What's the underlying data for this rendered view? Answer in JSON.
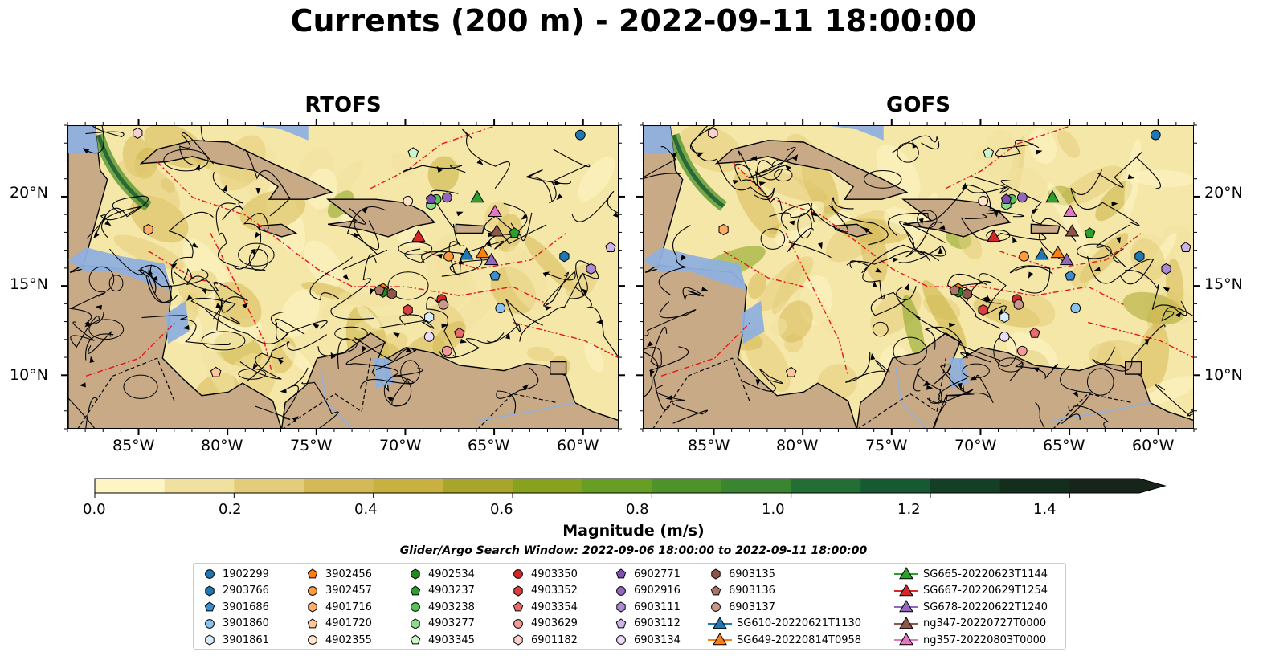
{
  "suptitle": "Currents (200 m) - 2022-09-11 18:00:00",
  "panels": [
    {
      "title": "RTOFS"
    },
    {
      "title": "GOFS"
    }
  ],
  "axes": {
    "x_ticks": [
      "85°W",
      "80°W",
      "75°W",
      "70°W",
      "65°W",
      "60°W"
    ],
    "y_ticks": [
      "20°N",
      "15°N",
      "10°N"
    ]
  },
  "colorbar": {
    "label": "Magnitude (m/s)",
    "tick_labels": [
      "0.0",
      "0.2",
      "0.4",
      "0.6",
      "0.8",
      "1.0",
      "1.2",
      "1.4"
    ],
    "colors": [
      "#fdf6c4",
      "#f1e19f",
      "#e4cd7a",
      "#d6b957",
      "#c9b141",
      "#a8a52b",
      "#87a21e",
      "#679e23",
      "#4e922a",
      "#3a8630",
      "#226e35",
      "#155a33",
      "#133f27",
      "#142e1d",
      "#17241a"
    ],
    "range": [
      0.0,
      1.5
    ],
    "extend": "max"
  },
  "search_window": "Glider/Argo Search Window: 2022-09-06 18:00:00 to 2022-09-11 18:00:00",
  "colors": {
    "land": "#c8aa86",
    "shallow_water": "#8fb0dd",
    "mask": "#9ab4df",
    "eez_line": "#e8141a",
    "streamline": "#000000"
  },
  "legend": {
    "columns": [
      [
        {
          "label": "1902299",
          "marker": "circle",
          "color": "#1f77b4"
        },
        {
          "label": "2903766",
          "marker": "hexagon",
          "color": "#1f77b4"
        },
        {
          "label": "3901686",
          "marker": "pentagon",
          "color": "#3a8fd0"
        },
        {
          "label": "3901860",
          "marker": "circle",
          "color": "#8bc3ee"
        },
        {
          "label": "3901861",
          "marker": "hexagon",
          "color": "#d6ecfb"
        }
      ],
      [
        {
          "label": "3902456",
          "marker": "pentagon",
          "color": "#ff7f0e"
        },
        {
          "label": "3902457",
          "marker": "circle",
          "color": "#ff9a3c"
        },
        {
          "label": "4901716",
          "marker": "hexagon",
          "color": "#ffae66"
        },
        {
          "label": "4901720",
          "marker": "pentagon",
          "color": "#ffc899"
        },
        {
          "label": "4902355",
          "marker": "circle",
          "color": "#ffe4c7"
        }
      ],
      [
        {
          "label": "4902534",
          "marker": "hexagon",
          "color": "#218a21"
        },
        {
          "label": "4903237",
          "marker": "pentagon",
          "color": "#2ca02c"
        },
        {
          "label": "4903238",
          "marker": "circle",
          "color": "#55c255"
        },
        {
          "label": "4903277",
          "marker": "hexagon",
          "color": "#8bdb8b"
        },
        {
          "label": "4903345",
          "marker": "pentagon",
          "color": "#cdf5cd"
        }
      ],
      [
        {
          "label": "4903350",
          "marker": "circle",
          "color": "#d62728"
        },
        {
          "label": "4903352",
          "marker": "hexagon",
          "color": "#dd3e3f"
        },
        {
          "label": "4903354",
          "marker": "pentagon",
          "color": "#ec6a6a"
        },
        {
          "label": "4903629",
          "marker": "circle",
          "color": "#f39b9b"
        },
        {
          "label": "6901182",
          "marker": "hexagon",
          "color": "#fad0d0"
        }
      ],
      [
        {
          "label": "6902771",
          "marker": "pentagon",
          "color": "#7d4fb3"
        },
        {
          "label": "6902916",
          "marker": "circle",
          "color": "#9467bd"
        },
        {
          "label": "6903111",
          "marker": "hexagon",
          "color": "#ae8ad4"
        },
        {
          "label": "6903112",
          "marker": "pentagon",
          "color": "#cdb5e8"
        },
        {
          "label": "6903134",
          "marker": "circle",
          "color": "#ecdcfa"
        }
      ],
      [
        {
          "label": "6903135",
          "marker": "hexagon",
          "color": "#8c564b"
        },
        {
          "label": "6903136",
          "marker": "pentagon",
          "color": "#a97567"
        },
        {
          "label": "6903137",
          "marker": "circle",
          "color": "#c7978a"
        },
        {
          "label": "SG610-20220621T1130",
          "marker": "triangle-line",
          "color": "#1f77b4"
        },
        {
          "label": "SG649-20220814T0958",
          "marker": "triangle-line",
          "color": "#ff7f0e"
        }
      ],
      [
        {
          "label": "SG665-20220623T1144",
          "marker": "triangle-line",
          "color": "#2ca02c"
        },
        {
          "label": "SG667-20220629T1254",
          "marker": "triangle-line",
          "color": "#d62728"
        },
        {
          "label": "SG678-20220622T1240",
          "marker": "triangle-line",
          "color": "#9467bd"
        },
        {
          "label": "ng347-20220727T0000",
          "marker": "triangle-line",
          "color": "#8c564b"
        },
        {
          "label": "ng357-20220803T0000",
          "marker": "triangle-line",
          "color": "#e377c2"
        }
      ]
    ]
  },
  "chart_data": [
    {
      "type": "heatmap",
      "title": "RTOFS",
      "variable": "Current magnitude at 200 m (m/s)",
      "xlim": [
        -89,
        -58
      ],
      "ylim": [
        7,
        24
      ],
      "x_ticks": [
        -85,
        -80,
        -75,
        -70,
        -65,
        -60
      ],
      "y_ticks": [
        10,
        15,
        20
      ],
      "color_range": [
        0.0,
        1.5
      ],
      "markers": [
        {
          "id": "1902299",
          "lon": -60.2,
          "lat": 23.5
        },
        {
          "id": "2903766",
          "lon": -61.1,
          "lat": 16.7
        },
        {
          "id": "3901686",
          "lon": -65.0,
          "lat": 15.6
        },
        {
          "id": "3901860",
          "lon": -64.7,
          "lat": 13.8
        },
        {
          "id": "3901861",
          "lon": -68.7,
          "lat": 13.3
        },
        {
          "id": "3902456",
          "lon": -71.3,
          "lat": 14.9
        },
        {
          "id": "3902457",
          "lon": -67.6,
          "lat": 16.7
        },
        {
          "id": "4901716",
          "lon": -84.5,
          "lat": 18.2
        },
        {
          "id": "4901720",
          "lon": -80.7,
          "lat": 10.2
        },
        {
          "id": "4902355",
          "lon": -69.9,
          "lat": 19.8
        },
        {
          "id": "4902534",
          "lon": -71.3,
          "lat": 14.7
        },
        {
          "id": "4903237",
          "lon": -63.9,
          "lat": 18.0
        },
        {
          "id": "4903238",
          "lon": -68.3,
          "lat": 19.9
        },
        {
          "id": "4903277",
          "lon": -68.6,
          "lat": 19.6
        },
        {
          "id": "4903345",
          "lon": -69.6,
          "lat": 22.5
        },
        {
          "id": "4903350",
          "lon": -68.0,
          "lat": 14.3
        },
        {
          "id": "4903352",
          "lon": -69.9,
          "lat": 13.7
        },
        {
          "id": "4903354",
          "lon": -67.0,
          "lat": 12.4
        },
        {
          "id": "4903629",
          "lon": -67.7,
          "lat": 11.4
        },
        {
          "id": "6901182",
          "lon": -85.1,
          "lat": 23.6
        },
        {
          "id": "6902771",
          "lon": -68.6,
          "lat": 19.9
        },
        {
          "id": "6902916",
          "lon": -67.7,
          "lat": 20.0
        },
        {
          "id": "6903111",
          "lon": -59.6,
          "lat": 16.0
        },
        {
          "id": "6903112",
          "lon": -58.5,
          "lat": 17.2
        },
        {
          "id": "6903134",
          "lon": -68.7,
          "lat": 12.2
        },
        {
          "id": "6903135",
          "lon": -70.8,
          "lat": 14.6
        },
        {
          "id": "6903136",
          "lon": -71.5,
          "lat": 14.8
        },
        {
          "id": "6903137",
          "lon": -67.9,
          "lat": 14.0
        },
        {
          "id": "SG610-20220621T1130",
          "lon": -66.6,
          "lat": 16.8
        },
        {
          "id": "SG649-20220814T0958",
          "lon": -65.7,
          "lat": 16.9
        },
        {
          "id": "SG665-20220623T1144",
          "lon": -66.0,
          "lat": 20.0
        },
        {
          "id": "SG667-20220629T1254",
          "lon": -69.3,
          "lat": 17.8
        },
        {
          "id": "SG678-20220622T1240",
          "lon": -65.2,
          "lat": 16.5
        },
        {
          "id": "ng347-20220727T0000",
          "lon": -64.9,
          "lat": 18.1
        },
        {
          "id": "ng357-20220803T0000",
          "lon": -65.0,
          "lat": 19.2
        }
      ]
    },
    {
      "type": "heatmap",
      "title": "GOFS",
      "variable": "Current magnitude at 200 m (m/s)",
      "xlim": [
        -89,
        -58
      ],
      "ylim": [
        7,
        24
      ],
      "x_ticks": [
        -85,
        -80,
        -75,
        -70,
        -65,
        -60
      ],
      "y_ticks": [
        10,
        15,
        20
      ],
      "color_range": [
        0.0,
        1.5
      ],
      "same_markers_as": "RTOFS"
    }
  ]
}
